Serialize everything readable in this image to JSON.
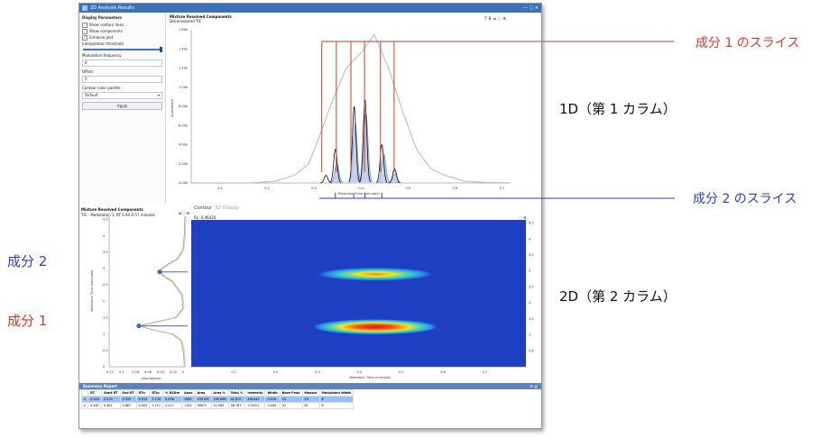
{
  "window": {
    "title": "2D Analysis Results"
  },
  "left_panel": {
    "title": "Display Parameters",
    "options": [
      {
        "label": "Show contour lines",
        "checked": false
      },
      {
        "label": "Show components",
        "checked": false
      },
      {
        "label": "Enhance plot",
        "checked": true
      }
    ],
    "interpolation_label": "Interpolation threshold",
    "modulation_label": "Modulation frequency",
    "modulation_value": "4",
    "offset_label": "Offset",
    "offset_value": "0",
    "palette_label": "Contour color palette",
    "palette_value": "Default",
    "apply_label": "Apply"
  },
  "top_chart": {
    "title": "Mixture Resolved Components",
    "subtitle": "Deconvoluted TIC",
    "toolbar": "T  B  ⇄  ⛶  ⚙"
  },
  "bottom_left": {
    "title": "Mixture Resolved Components",
    "subtitle": "TIC - Modulation 1, RT 0.40-0.57 minutes",
    "toolbar": "⇄  ⛶  ⚙"
  },
  "contour": {
    "tab_active": "Contour",
    "tab_inactive": "3D Display",
    "corner_label": "RL: 0.46420",
    "toolbar": "⛶  ⚙"
  },
  "summary": {
    "title": "Summary Report",
    "columns": [
      "RT",
      "Start RT",
      "End RT",
      "RTn",
      "RTm",
      "% RSDm",
      "Apex",
      "Area",
      "Area %",
      "Total %",
      "Intensity",
      "Width",
      "Base Peak",
      "Masses",
      "Modulated Width"
    ],
    "rows": [
      [
        "1",
        "0.318",
        "0.319",
        "0.520",
        "0.513",
        "1.130",
        "0.098",
        "1962",
        "192109",
        "243 666",
        "41.870",
        "461442",
        "0.016",
        "12",
        "43",
        "8"
      ],
      [
        "2",
        "0.467",
        "0.461",
        "0.867",
        "0.409",
        "0.211",
        "2.017",
        "1181",
        "99675",
        "51 062",
        "58.787",
        "275521",
        "0.494",
        "91",
        "81",
        "8"
      ]
    ]
  },
  "annotations": {
    "slice1": "成分 1 のスライス",
    "slice2": "成分 2 のスライス",
    "dim1": "1D（第 1 カラム）",
    "dim2": "2D（第 2 カラム）",
    "comp2": "成分 2",
    "comp1": "成分 1"
  },
  "chart_data": [
    {
      "type": "line",
      "name": "top-1d",
      "title": "Mixture Resolved Components",
      "subtitle": "Deconvoluted TIC",
      "xlabel": "Retention Time (minutes)",
      "ylabel": "Abundance",
      "xlim": [
        0.04,
        0.72
      ],
      "ylim": [
        0,
        160000000
      ],
      "x_ticks": [
        "0.1",
        "0.2",
        "0.3",
        "0.4",
        "0.5",
        "0.6",
        "0.7"
      ],
      "y_ticks": [
        "0.00e",
        "2.00e",
        "4.00e",
        "6.00e",
        "8.00e",
        "1.00e",
        "1.20e",
        "1.40e",
        "1.60e"
      ],
      "envelope": {
        "x": [
          0.04,
          0.17,
          0.22,
          0.26,
          0.29,
          0.31,
          0.34,
          0.37,
          0.4,
          0.43,
          0.46,
          0.49,
          0.52,
          0.55,
          0.58,
          0.62,
          0.67,
          0.72
        ],
        "y": [
          0,
          0,
          2000000,
          8000000,
          20000000,
          45000000,
          85000000,
          120000000,
          135000000,
          155000000,
          120000000,
          75000000,
          35000000,
          15000000,
          8000000,
          2000000,
          500000,
          0
        ]
      },
      "component1_peaks": [
        {
          "x": 0.327,
          "y": 8000000
        },
        {
          "x": 0.347,
          "y": 35000000
        },
        {
          "x": 0.387,
          "y": 80000000
        },
        {
          "x": 0.41,
          "y": 87000000
        },
        {
          "x": 0.446,
          "y": 40000000
        },
        {
          "x": 0.473,
          "y": 15000000
        }
      ],
      "component2_peaks": [
        {
          "x": 0.35,
          "y": 20000000
        },
        {
          "x": 0.389,
          "y": 62000000
        },
        {
          "x": 0.412,
          "y": 72000000
        },
        {
          "x": 0.45,
          "y": 30000000
        },
        {
          "x": 0.474,
          "y": 10000000
        }
      ],
      "slice1_markers": [
        0.318,
        0.349,
        0.38,
        0.409,
        0.443,
        0.472
      ],
      "slice2_markers": [
        0.347,
        0.386,
        0.41,
        0.446
      ]
    },
    {
      "type": "line",
      "name": "second-dimension-profile",
      "xlabel": "Abundance",
      "ylabel": "Retention Time (seconds)",
      "x_ticks": [
        "0.12",
        "0.1",
        "0.08",
        "0.06",
        "0.04",
        "0.02",
        "0"
      ],
      "y_ticks": [
        "0",
        "0.5",
        "1",
        "1.5",
        "2",
        "2.5",
        "3",
        "3.5",
        "4",
        "4.5"
      ],
      "xlim": [
        0.12,
        0
      ],
      "ylim": [
        0,
        4.6
      ],
      "curve": {
        "y": [
          0,
          0.4,
          0.8,
          1.0,
          1.15,
          1.25,
          1.35,
          1.5,
          1.8,
          2.2,
          2.6,
          2.8,
          2.95,
          3.1,
          3.3,
          3.6,
          4.0,
          4.6
        ],
        "x": [
          0.001,
          0.002,
          0.006,
          0.02,
          0.055,
          0.073,
          0.05,
          0.015,
          0.003,
          0.005,
          0.02,
          0.036,
          0.04,
          0.03,
          0.012,
          0.003,
          0.001,
          0.0
        ]
      },
      "points": [
        {
          "label": "成分 2",
          "x": 0.04,
          "y": 2.9
        },
        {
          "label": "成分 1",
          "x": 0.073,
          "y": 1.25
        }
      ]
    },
    {
      "type": "heatmap",
      "name": "2d-contour",
      "xlabel": "Retention Time (minutes)",
      "x_ticks": [
        "0.1",
        "0.2",
        "0.3",
        "0.4",
        "0.5",
        "0.6",
        "0.7"
      ],
      "y_ticks": [
        "0.5",
        "1",
        "1.5",
        "2",
        "2.5",
        "3",
        "3.5",
        "4",
        "4.5"
      ],
      "xlim": [
        0.0,
        0.8
      ],
      "ylim": [
        0,
        4.6
      ],
      "blobs": [
        {
          "name": "成分 1",
          "x_center": 0.44,
          "y_center": 1.25,
          "x_width": 0.26,
          "y_width": 0.42,
          "peak": 1.0
        },
        {
          "name": "成分 2",
          "x_center": 0.44,
          "y_center": 2.9,
          "x_width": 0.24,
          "y_width": 0.36,
          "peak": 0.78
        }
      ],
      "colors": {
        "background": "#1f3fc2",
        "low": "#2b8fe8",
        "mid": "#39d3c2",
        "high": "#f6e21d",
        "peak": "#e0161a"
      }
    }
  ],
  "colors": {
    "slice1": "#d43a2a",
    "slice2": "#2a3ec9",
    "peaks_component1": "#0b0b0b",
    "peaks_component2": "#7a9ad4",
    "envelope": "#b0b0b0",
    "summary_header": "#5d83bb",
    "selected_row": "#9ec0f0",
    "titlebar": "#3d72b8"
  }
}
